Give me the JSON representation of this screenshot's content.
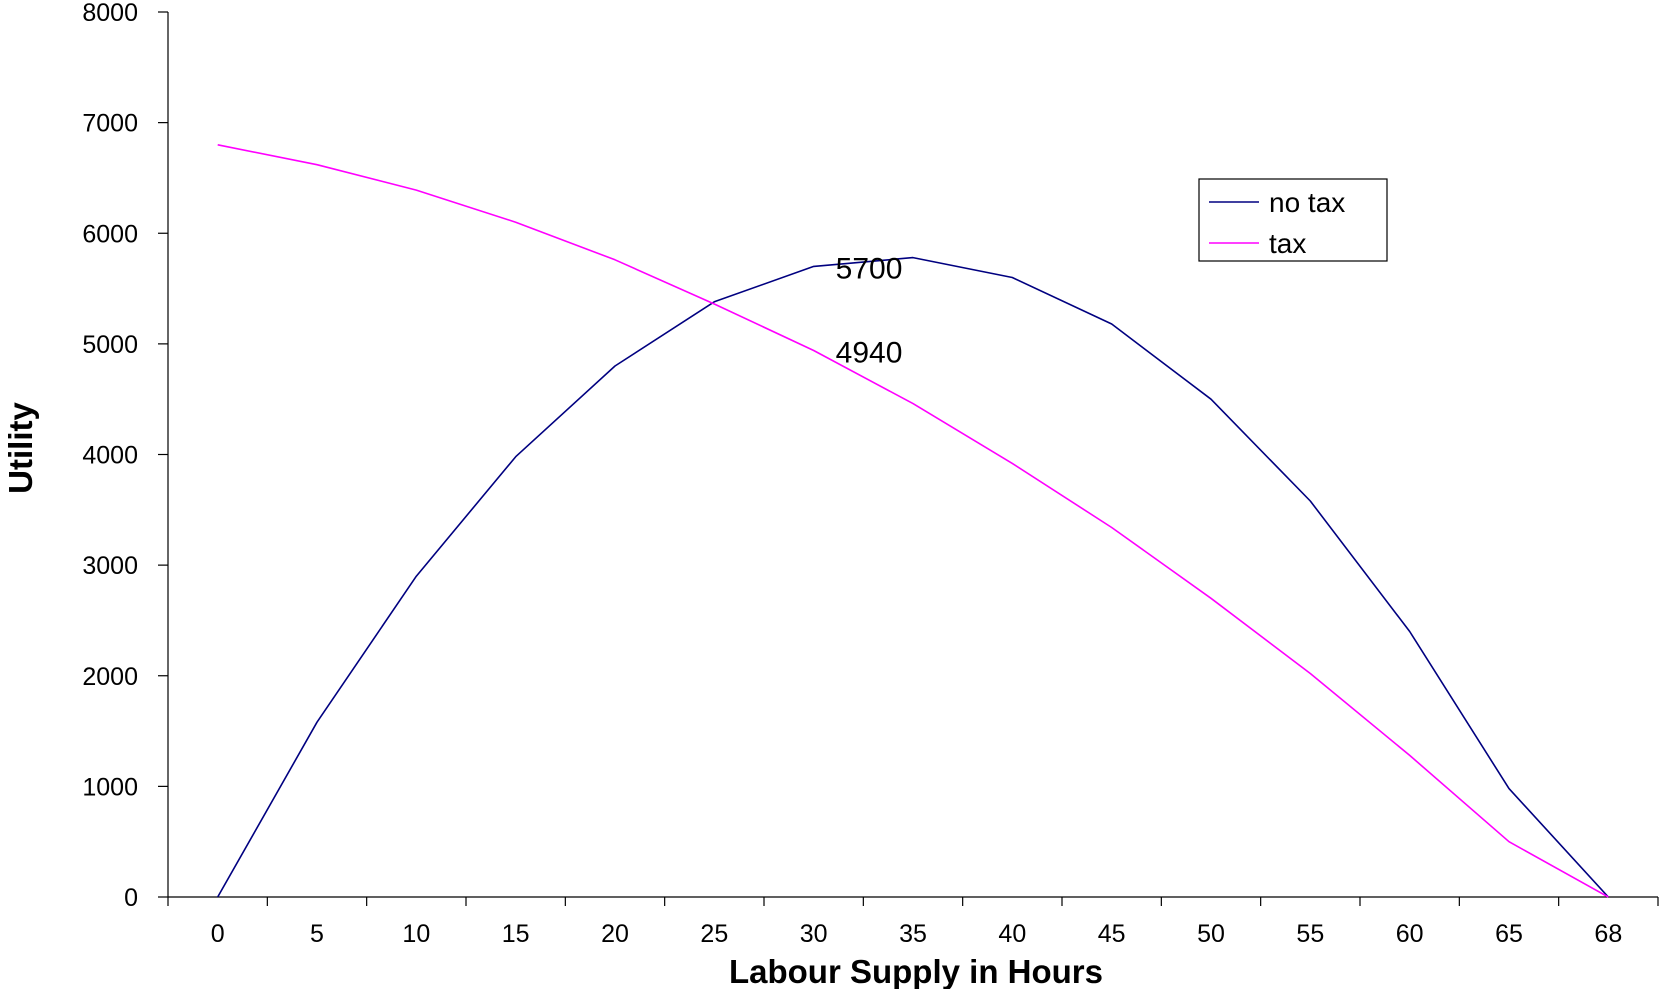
{
  "chart_data": {
    "type": "line",
    "title": "",
    "xlabel": "Labour Supply in Hours",
    "ylabel": "Utility",
    "categories": [
      "0",
      "5",
      "10",
      "15",
      "20",
      "25",
      "30",
      "35",
      "40",
      "45",
      "50",
      "55",
      "60",
      "65",
      "68"
    ],
    "ylim": [
      0,
      8000
    ],
    "yticks": [
      "0",
      "1000",
      "2000",
      "3000",
      "4000",
      "5000",
      "6000",
      "7000",
      "8000"
    ],
    "grid": false,
    "legend_position": "top-right",
    "series": [
      {
        "name": "no tax",
        "color": "#000080",
        "values": [
          0,
          1580,
          2900,
          3980,
          4800,
          5380,
          5700,
          5780,
          5600,
          5180,
          4500,
          3580,
          2400,
          980,
          0
        ]
      },
      {
        "name": "tax",
        "color": "#ff00ff",
        "values": [
          6800,
          6620,
          6390,
          6100,
          5760,
          5360,
          4940,
          4460,
          3920,
          3340,
          2700,
          2020,
          1280,
          500,
          0
        ]
      }
    ],
    "annotations": [
      {
        "text": "5700",
        "category": "30",
        "value": 5700
      },
      {
        "text": "4940",
        "category": "30",
        "value": 4940
      }
    ]
  }
}
